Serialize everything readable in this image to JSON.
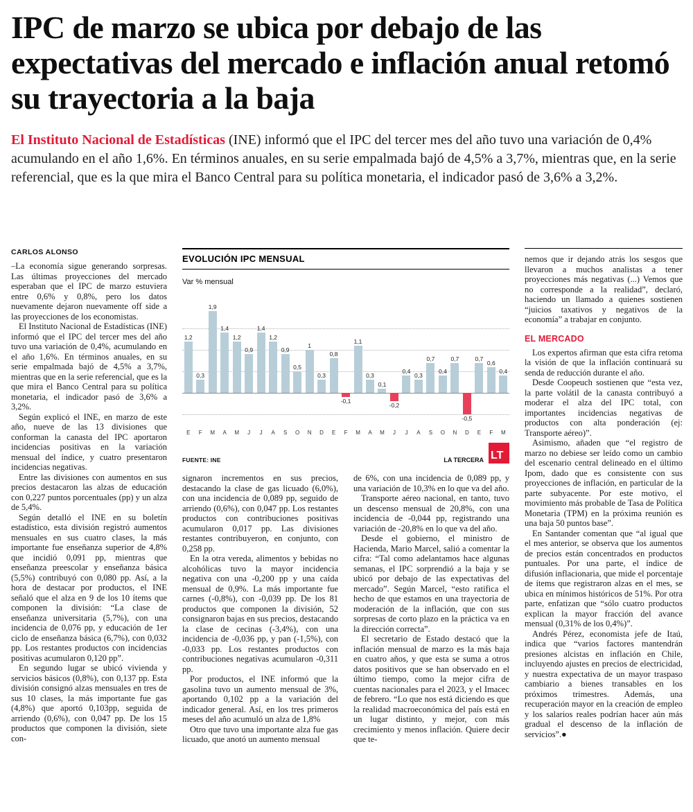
{
  "colors": {
    "accent_red": "#e11b36",
    "bar_positive": "#b7ced9",
    "bar_negative": "#e8405a"
  },
  "headline": "IPC de marzo se ubica por debajo de las expectativas del mercado e inflación anual retomó su trayectoria a la baja",
  "lead": {
    "highlight": "El Instituto Nacional de Estadísticas",
    "rest": " (INE) informó que el IPC del tercer mes del año tuvo una variación de 0,4% acumulando en el año 1,6%. En términos anuales, en su serie empalmada bajó de 4,5% a 3,7%, mientras que, en la serie referencial, que es la que mira el Banco Central para su política monetaria, el indicador pasó de 3,6% a 3,2%."
  },
  "byline": "CARLOS ALONSO",
  "columns": {
    "col1": {
      "paragraphs": [
        "–La economía sigue generando sorpresas. Las últimas proyecciones del mercado esperaban que el IPC de marzo estuviera entre 0,6% y 0,8%, pero los datos nuevamente dejaron nuevamente off side a las proyecciones de los economistas.",
        "El Instituto Nacional de Estadísticas (INE) informó que el IPC del tercer mes del año tuvo una variación de 0,4%, acumulando en el año 1,6%. En términos anuales, en su serie empalmada bajó de 4,5% a 3,7%, mientras que en la serie referencial, que es la que mira el Banco Central para su política monetaria, el indicador pasó de 3,6% a 3,2%.",
        "Según explicó el INE, en marzo de este año, nueve de las 13 divisiones que conforman la canasta del IPC aportaron incidencias positivas en la variación mensual del índice, y cuatro presentaron incidencias negativas.",
        "Entre las divisiones con aumentos en sus precios destacaron las alzas de educación con 0,227 puntos porcentuales (pp) y un alza de 5,4%.",
        "Según detalló el INE en su boletín estadístico, esta división registró aumentos mensuales en sus cuatro clases, la más importante fue enseñanza superior de 4,8% que incidió 0,091 pp, mientras que enseñanza preescolar y enseñanza básica (5,5%) contribuyó con 0,080 pp. Así, a la hora de destacar por productos, el INE señaló que el alza en 9 de los 10 ítems que componen la división: “La clase de enseñanza universitaria (5,7%), con una incidencia de 0,076 pp, y educación de 1er ciclo de enseñanza básica (6,7%), con 0,032 pp. Los restantes productos con incidencias positivas acumularon 0,120 pp”.",
        "En segundo lugar se ubicó vivienda y servicios básicos (0,8%), con 0,137 pp. Esta división consignó alzas mensuales en tres de sus 10 clases, la más importante fue gas (4,8%) que aportó 0,103pp, seguida de arriendo (0,6%), con 0,047 pp. De los 15 productos que componen la división, siete con-"
      ]
    },
    "col2": {
      "paragraphs": [
        "signaron incrementos en sus precios, destacando la clase de gas licuado (6,0%), con una incidencia de 0,089 pp, seguido de arriendo (0,6%), con 0,047 pp. Los restantes productos con contribuciones positivas acumularon 0,017 pp. Las divisiones restantes contribuyeron, en conjunto, con 0,258 pp.",
        "En la otra vereda, alimentos y bebidas no alcohólicas tuvo la mayor incidencia negativa con una -0,200 pp y una caída mensual de 0,9%. La más importante fue carnes (-0,8%), con -0,039 pp. De los 81 productos que componen la división, 52 consignaron bajas en sus precios, destacando la clase de cecinas (-3,4%), con una incidencia de -0,036 pp, y pan (-1,5%), con -0,033 pp. Los restantes productos con contribuciones negativas acumularon -0,311 pp.",
        "Por productos, el INE informó que la gasolina tuvo un aumento mensual de 3%, aportando 0,102 pp a la variación del indicador general. Así, en los tres primeros meses del año acumuló un alza de 1,8%",
        "Otro que tuvo una importante alza fue gas licuado, que anotó un aumento mensual"
      ]
    },
    "col3": {
      "paragraphs": [
        "de 6%, con una incidencia de 0,089 pp, y una variación de 10,3% en lo que va del año.",
        "Transporte aéreo nacional, en tanto, tuvo un descenso mensual de 20,8%, con una incidencia de -0,044 pp, registrando una variación de -20,8% en lo que va del año.",
        "Desde el gobierno, el ministro de Hacienda, Mario Marcel, salió a comentar la cifra: “Tal como adelantamos hace algunas semanas, el IPC sorprendió a la baja y se ubicó por debajo de las expectativas del mercado”. Según Marcel, “esto ratifica el hecho de que estamos en una trayectoria de moderación de la inflación, que con sus sorpresas de corto plazo en la práctica va en la dirección correcta”.",
        "El secretario de Estado destacó que la inflación mensual de marzo es la más baja en cuatro años, y que esta se suma a otros datos positivos que se han observado en el último tiempo, como la mejor cifra de cuentas nacionales para el 2023, y el Imacec de febrero. “Lo que nos está diciendo es que la realidad macroeconómica del país está en un lugar distinto, y mejor, con más crecimiento y menos inflación. Quiere decir que te-"
      ]
    },
    "col4": {
      "paragraphs_top": [
        "nemos que ir dejando atrás los sesgos que llevaron a muchos analistas a tener proyecciones más negativas (...) Vemos que no corresponde a la realidad”, declaró, haciendo un llamado a quienes sostienen “juicios taxativos y negativos de la economía” a trabajar en conjunto."
      ],
      "subhead": "EL MERCADO",
      "paragraphs_market": [
        "Los expertos afirman que esta cifra retoma la visión de que la inflación continuará su senda de reducción durante el año.",
        "Desde Coopeuch sostienen que “esta vez, la parte volátil de la canasta contribuyó a moderar el alza del IPC total, con importantes incidencias negativas de productos con alta ponderación (ej: Transporte aéreo)”.",
        "Asimismo, añaden que “el registro de marzo no debiese ser leído como un cambio del escenario central delineado en el último Ipom, dado que es consistente con sus proyecciones de inflación, en particular de la parte subyacente. Por este motivo, el movimiento más probable de Tasa de Política Monetaria (TPM) en la próxima reunión es una baja 50 puntos base”.",
        "En Santander comentan que “al igual que el mes anterior, se observa que los aumentos de precios están concentrados en productos puntuales. Por una parte, el índice de difusión inflacionaria, que mide el porcentaje de ítems que registraron alzas en el mes, se ubica en mínimos históricos de 51%. Por otra parte, enfatizan que “sólo cuatro productos explican la mayor fracción del avance mensual (0,31% de los 0,4%)”.",
        "Andrés Pérez, economista jefe de Itaú, indica que “varios factores mantendrán presiones alcistas en inflación en Chile, incluyendo ajustes en precios de electricidad, y nuestra expectativa de un mayor traspaso cambiario a bienes transables en los próximos trimestres. Además, una recuperación mayor en la creación de empleo y los salarios reales podrían hacer aún más gradual el descenso de la inflación de servicios”.●"
      ]
    }
  },
  "chart_data": {
    "type": "bar",
    "title": "EVOLUCIÓN IPC MENSUAL",
    "ylabel": "Var % mensual",
    "categories": [
      "E",
      "F",
      "M",
      "A",
      "M",
      "J",
      "J",
      "A",
      "S",
      "O",
      "N",
      "D",
      "E",
      "F",
      "M",
      "A",
      "M",
      "J",
      "J",
      "A",
      "S",
      "O",
      "N",
      "D",
      "E",
      "F",
      "M"
    ],
    "values": [
      1.2,
      0.3,
      1.9,
      1.4,
      1.2,
      0.9,
      1.4,
      1.2,
      0.9,
      0.5,
      1.0,
      0.3,
      0.8,
      -0.1,
      1.1,
      0.3,
      0.1,
      -0.2,
      0.4,
      0.3,
      0.7,
      0.4,
      0.7,
      -0.5,
      0.7,
      0.6,
      0.4
    ],
    "labels": [
      "1,2",
      "0,3",
      "1,9",
      "1,4",
      "1,2",
      "0,9",
      "1,4",
      "1,2",
      "0,9",
      "0,5",
      "1",
      "0,3",
      "0,8",
      "-0,1",
      "1,1",
      "0,3",
      "0,1",
      "-0,2",
      "0,4",
      "0,3",
      "0,7",
      "0,4",
      "0,7",
      "-0,5",
      "0,7",
      "0,6",
      "0,4"
    ],
    "ylim": [
      -0.7,
      2.0
    ],
    "gridlines": [
      1.5,
      1.0,
      0.5,
      -0.5
    ],
    "grid": "dotted horizontal",
    "source": "FUENTE: INE",
    "credit": "LA TERCERA",
    "logo": "LT"
  }
}
